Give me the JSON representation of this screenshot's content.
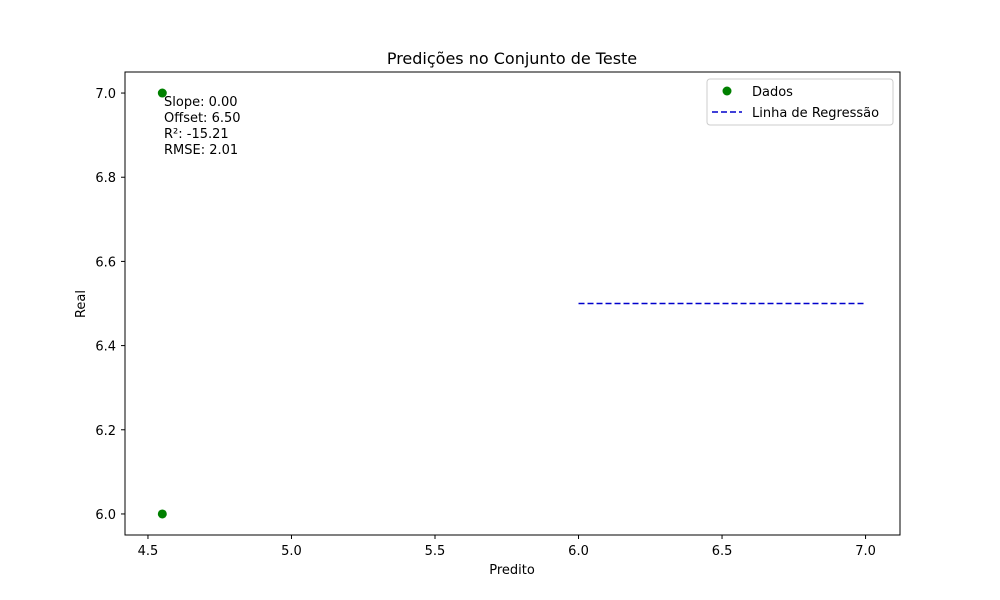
{
  "chart_data": {
    "type": "scatter",
    "title": "Predições no Conjunto de Teste",
    "xlabel": "Predito",
    "ylabel": "Real",
    "xlim": [
      4.42,
      7.12
    ],
    "ylim": [
      5.95,
      7.05
    ],
    "x_ticks": [
      4.5,
      5.0,
      5.5,
      6.0,
      6.5,
      7.0
    ],
    "x_tick_labels": [
      "4.5",
      "5.0",
      "5.5",
      "6.0",
      "6.5",
      "7.0"
    ],
    "y_ticks": [
      6.0,
      6.2,
      6.4,
      6.6,
      6.8,
      7.0
    ],
    "y_tick_labels": [
      "6.0",
      "6.2",
      "6.4",
      "6.6",
      "6.8",
      "7.0"
    ],
    "grid": false,
    "legend_position": "top-right",
    "series": [
      {
        "name": "Dados",
        "kind": "scatter",
        "color": "#008000",
        "points": [
          {
            "x": 4.55,
            "y": 7.0
          },
          {
            "x": 4.55,
            "y": 6.0
          }
        ]
      },
      {
        "name": "Linha de Regressão",
        "kind": "line",
        "style": "dashed",
        "color": "#0000cc",
        "points": [
          {
            "x": 6.0,
            "y": 6.5
          },
          {
            "x": 7.0,
            "y": 6.5
          }
        ]
      }
    ],
    "annotations": [
      "Slope: 0.00",
      "Offset: 6.50",
      "R²: -15.21",
      "RMSE: 2.01"
    ]
  }
}
